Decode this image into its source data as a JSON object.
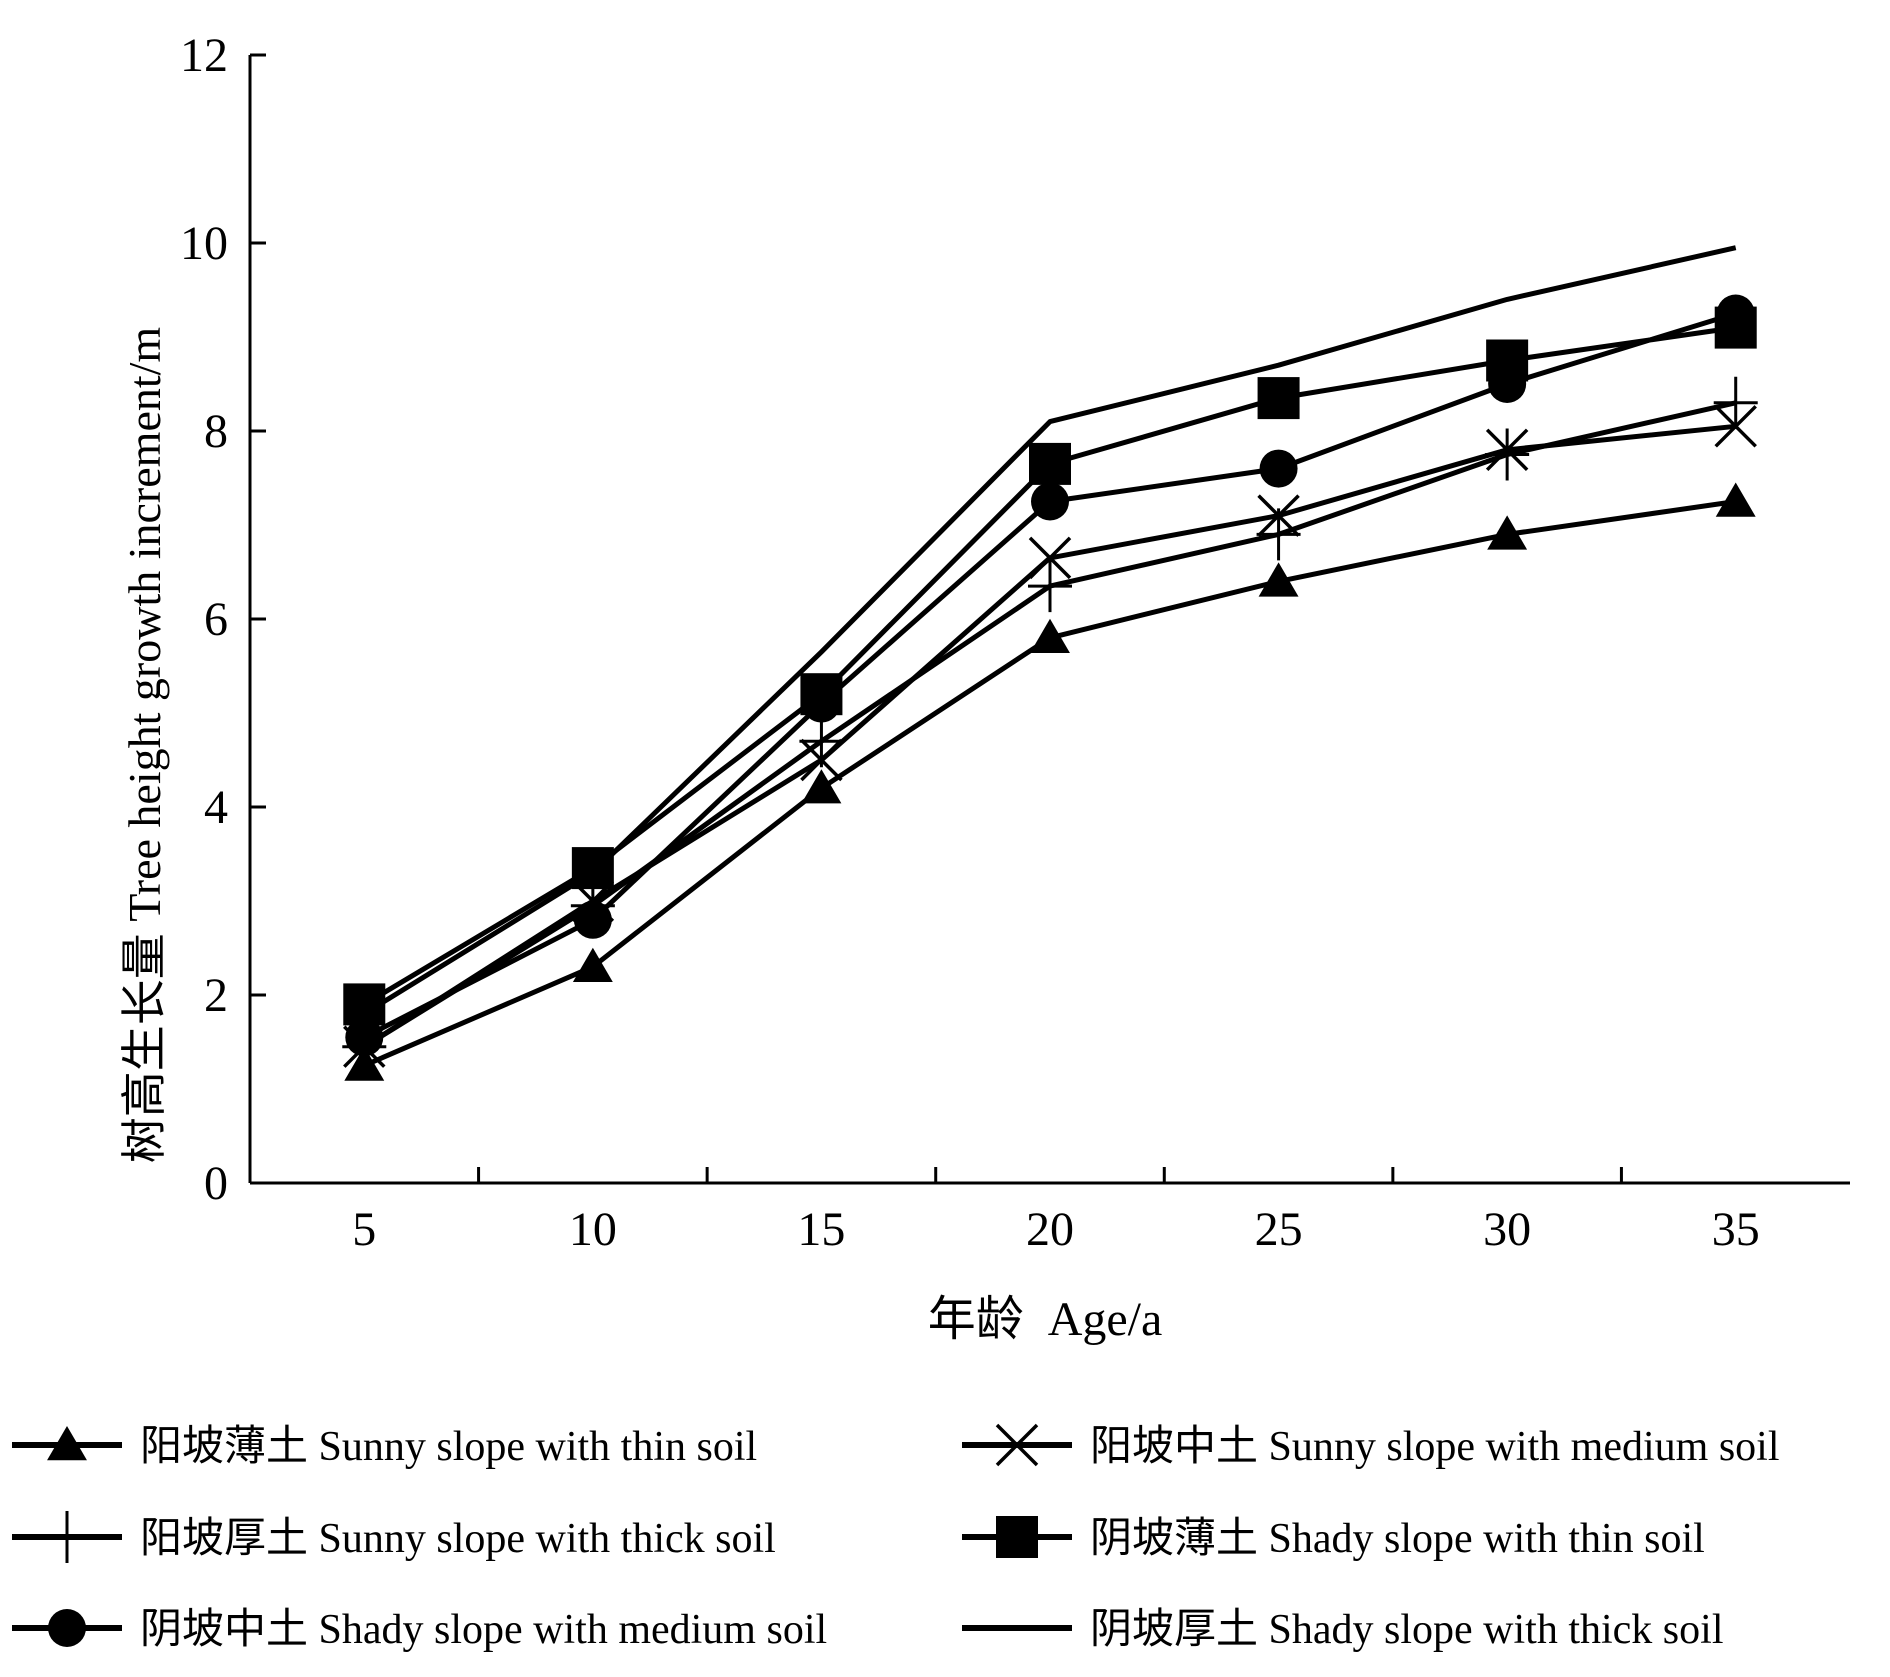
{
  "chart_data": {
    "type": "line",
    "title": "",
    "xlabel": "年龄  Age/a",
    "ylabel": "树高生长量 Tree height growth increment/m",
    "x": [
      5,
      10,
      15,
      20,
      25,
      30,
      35
    ],
    "xlim": [
      2.5,
      37.5
    ],
    "ylim": [
      0,
      12
    ],
    "xticks": [
      "5",
      "10",
      "15",
      "20",
      "25",
      "30",
      "35"
    ],
    "yticks": [
      "0",
      "2",
      "4",
      "6",
      "8",
      "10",
      "12"
    ],
    "grid": false,
    "legend_position": "bottom",
    "color": "#000000",
    "series": [
      {
        "name": "阳坡薄土 Sunny slope with thin soil",
        "marker": "triangle",
        "values": [
          1.25,
          2.3,
          4.2,
          5.8,
          6.4,
          6.9,
          7.25
        ]
      },
      {
        "name": "阳坡中土 Sunny slope with medium soil",
        "marker": "x",
        "values": [
          1.45,
          3.0,
          4.5,
          6.65,
          7.1,
          7.8,
          8.05
        ]
      },
      {
        "name": "阳坡厚土 Sunny slope with thick soil",
        "marker": "plus",
        "values": [
          1.45,
          2.95,
          4.7,
          6.35,
          6.9,
          7.75,
          8.3
        ]
      },
      {
        "name": "阴坡薄土 Shady slope with thin soil",
        "marker": "square",
        "values": [
          1.9,
          3.35,
          5.2,
          7.65,
          8.35,
          8.75,
          9.1
        ]
      },
      {
        "name": "阴坡中土 Shady slope with medium soil",
        "marker": "circle",
        "values": [
          1.55,
          2.8,
          5.1,
          7.25,
          7.6,
          8.5,
          9.25
        ]
      },
      {
        "name": "阴坡厚土 Shady slope with thick soil",
        "marker": "none",
        "values": [
          1.8,
          3.3,
          5.65,
          8.1,
          8.7,
          9.4,
          9.95
        ]
      }
    ]
  }
}
